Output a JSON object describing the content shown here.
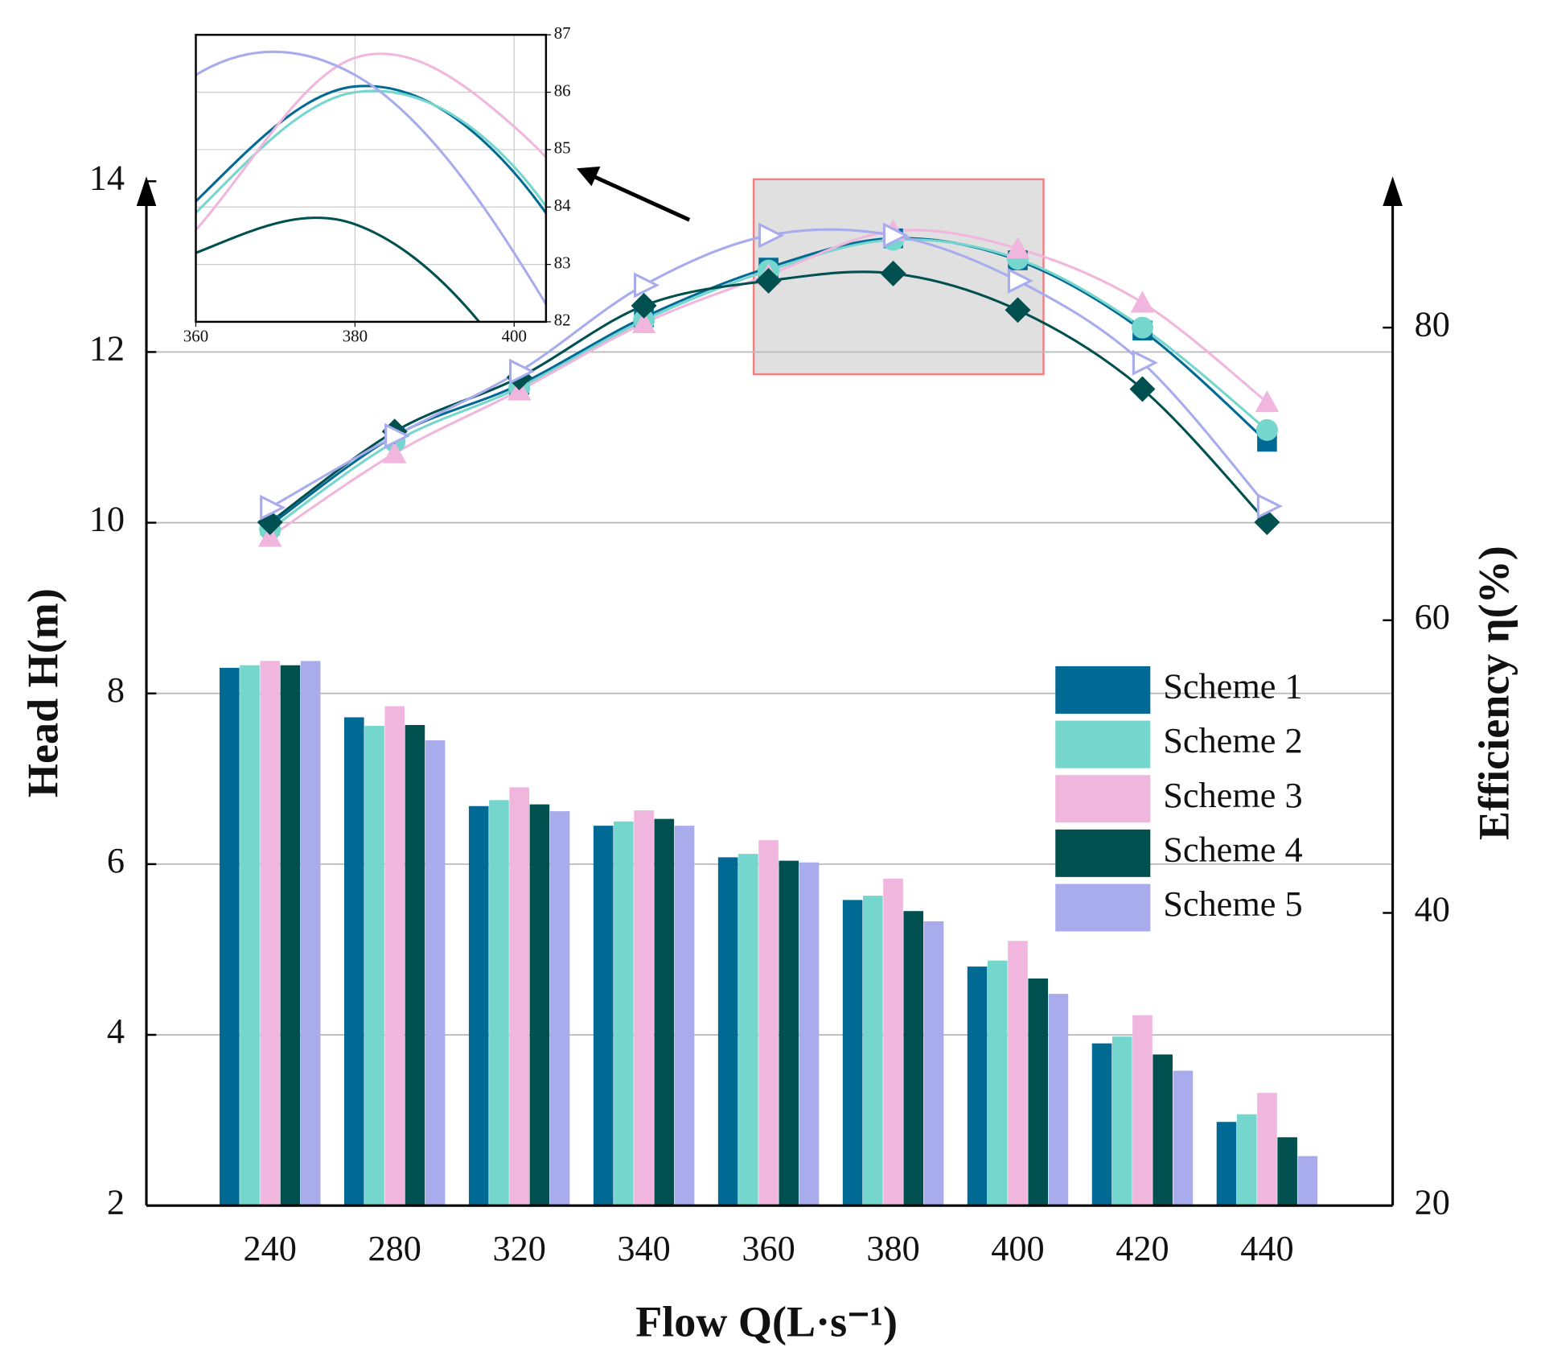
{
  "chart_data": {
    "type": "bar",
    "x_label": "Flow Q(L·s⁻¹)",
    "y_label": "Head H(m)",
    "y2_label": "Efficiency η(%)",
    "categories": [
      "240",
      "280",
      "320",
      "340",
      "360",
      "380",
      "400",
      "420",
      "440"
    ],
    "ylim": [
      2,
      14
    ],
    "yticks": [
      2,
      4,
      6,
      8,
      10,
      12,
      14
    ],
    "y2lim": [
      20,
      90
    ],
    "y2ticks": [
      20,
      40,
      60,
      80
    ],
    "grid": true,
    "legend": "right",
    "series": [
      {
        "name": "Scheme 1",
        "color": "#006a94",
        "values": [
          8.3,
          7.72,
          6.68,
          6.45,
          6.08,
          5.58,
          4.8,
          3.9,
          2.98
        ]
      },
      {
        "name": "Scheme 2",
        "color": "#74d6cd",
        "values": [
          8.33,
          7.62,
          6.75,
          6.5,
          6.12,
          5.63,
          4.87,
          3.98,
          3.07
        ]
      },
      {
        "name": "Scheme 3",
        "color": "#f0b6dd",
        "values": [
          8.38,
          7.85,
          6.9,
          6.63,
          6.28,
          5.83,
          5.1,
          4.23,
          3.32
        ]
      },
      {
        "name": "Scheme 4",
        "color": "#00504f",
        "values": [
          8.33,
          7.63,
          6.7,
          6.53,
          6.04,
          5.45,
          4.66,
          3.77,
          2.8
        ]
      },
      {
        "name": "Scheme 5",
        "color": "#a8aced",
        "values": [
          8.38,
          7.45,
          6.62,
          6.45,
          6.02,
          5.33,
          4.48,
          3.58,
          2.58
        ]
      },
      {
        "name": "Scheme 1",
        "type": "line",
        "axis": "y2",
        "marker": "square",
        "color": "#006a94",
        "values": [
          66.5,
          72.6,
          76.1,
          80.7,
          84.1,
          86.1,
          84.6,
          79.8,
          72.2
        ]
      },
      {
        "name": "Scheme 2",
        "type": "line",
        "axis": "y2",
        "marker": "circle",
        "color": "#74d6cd",
        "values": [
          66.2,
          72.2,
          75.9,
          80.5,
          83.9,
          86.0,
          84.7,
          80.0,
          73.0
        ]
      },
      {
        "name": "Scheme 3",
        "type": "line",
        "axis": "y2",
        "marker": "triangle",
        "color": "#f0b6dd",
        "values": [
          65.7,
          71.4,
          75.7,
          80.3,
          83.6,
          86.6,
          85.4,
          81.7,
          74.9
        ]
      },
      {
        "name": "Scheme 4",
        "type": "line",
        "axis": "y2",
        "marker": "diamond",
        "color": "#00504f",
        "values": [
          66.7,
          72.9,
          76.6,
          81.5,
          83.2,
          83.7,
          81.2,
          75.8,
          66.7
        ]
      },
      {
        "name": "Scheme 5",
        "type": "line",
        "axis": "y2",
        "marker": "open-right-triangle",
        "color": "#a8aced",
        "values": [
          67.7,
          72.6,
          77.0,
          82.9,
          86.3,
          86.3,
          83.2,
          77.6,
          67.8
        ]
      }
    ],
    "inset": {
      "xlim": [
        360,
        404
      ],
      "xticks": [
        360,
        380,
        400
      ],
      "ylim": [
        82,
        87
      ],
      "yticks": [
        82,
        83,
        84,
        85,
        86,
        87
      ],
      "grid": true
    }
  }
}
